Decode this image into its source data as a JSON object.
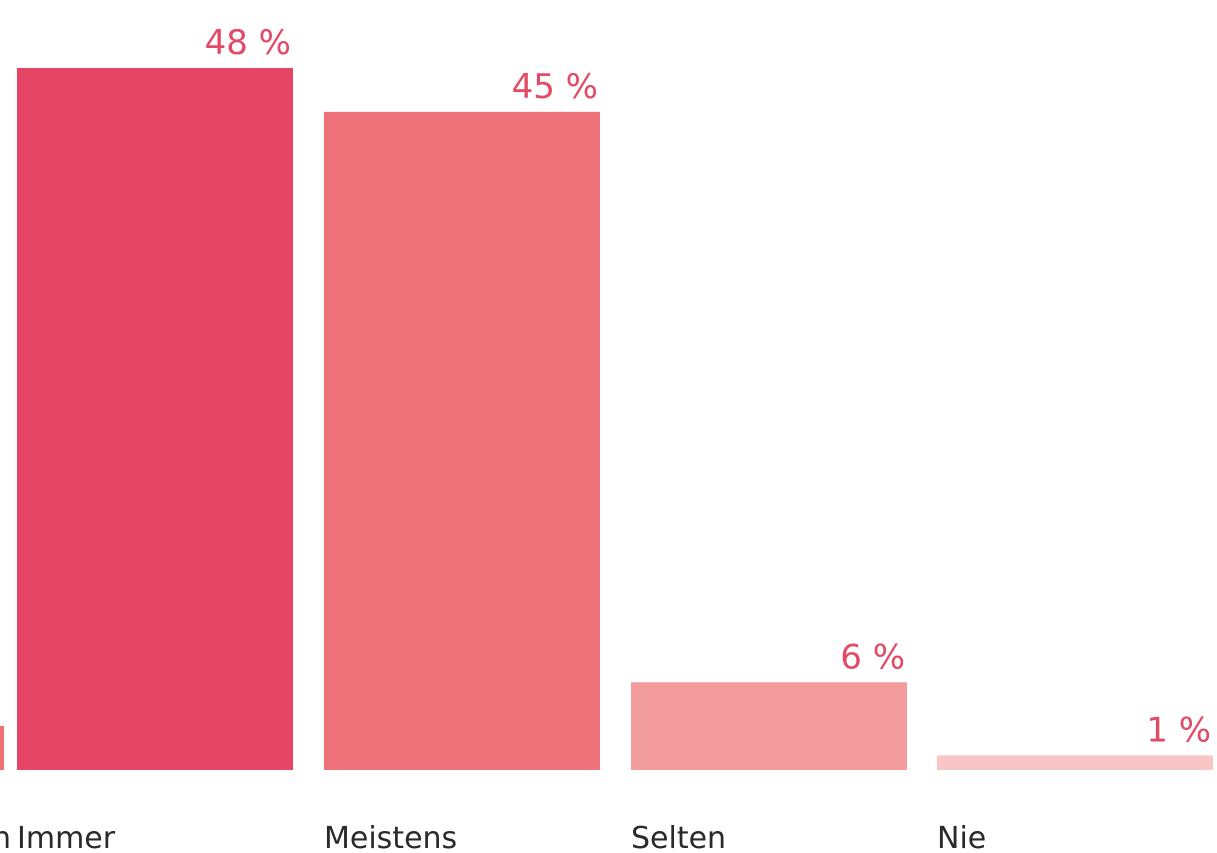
{
  "chart_data": {
    "type": "bar",
    "title": "",
    "xlabel": "",
    "ylabel": "",
    "ylim": [
      0,
      48
    ],
    "grid": false,
    "categories": [
      "Immer",
      "Meistens",
      "Selten",
      "Nie"
    ],
    "clipped_left_category": {
      "label_fragment": "n",
      "color": "#f07279"
    },
    "series": [
      {
        "values": [
          48,
          45,
          6,
          1
        ],
        "value_labels": [
          "48 %",
          "45 %",
          "6 %",
          "1 %"
        ],
        "colors": [
          "#e64565",
          "#ef727b",
          "#f39c9e",
          "#f7c6c5"
        ]
      }
    ],
    "label_color": "#e24a66"
  }
}
